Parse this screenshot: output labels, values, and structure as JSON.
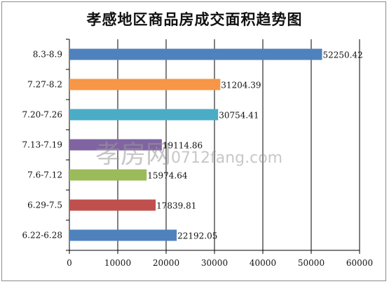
{
  "chart_data": {
    "type": "bar",
    "orientation": "horizontal",
    "title": "孝感地区商品房成交面积趋势图",
    "categories": [
      "6.22-6.28",
      "6.29-7.5",
      "7.6-7.12",
      "7.13-7.19",
      "7.20-7.26",
      "7.27-8.2",
      "8.3-8.9"
    ],
    "values": [
      22192.05,
      17839.81,
      15974.64,
      19114.86,
      30754.41,
      31204.39,
      52250.42
    ],
    "colors": [
      "#4f81bd",
      "#c0504d",
      "#9bbb59",
      "#8064a2",
      "#4bacc6",
      "#f79646",
      "#4f81bd"
    ],
    "xlim": [
      0,
      60000
    ],
    "x_ticks": [
      "0",
      "10000",
      "20000",
      "30000",
      "40000",
      "50000",
      "60000"
    ],
    "xlabel": "",
    "ylabel": "",
    "grid": "vertical major gridlines",
    "data_labels": true,
    "legend": "none"
  },
  "watermark": {
    "brand": "孝房网",
    "url": "0712fang.com"
  }
}
